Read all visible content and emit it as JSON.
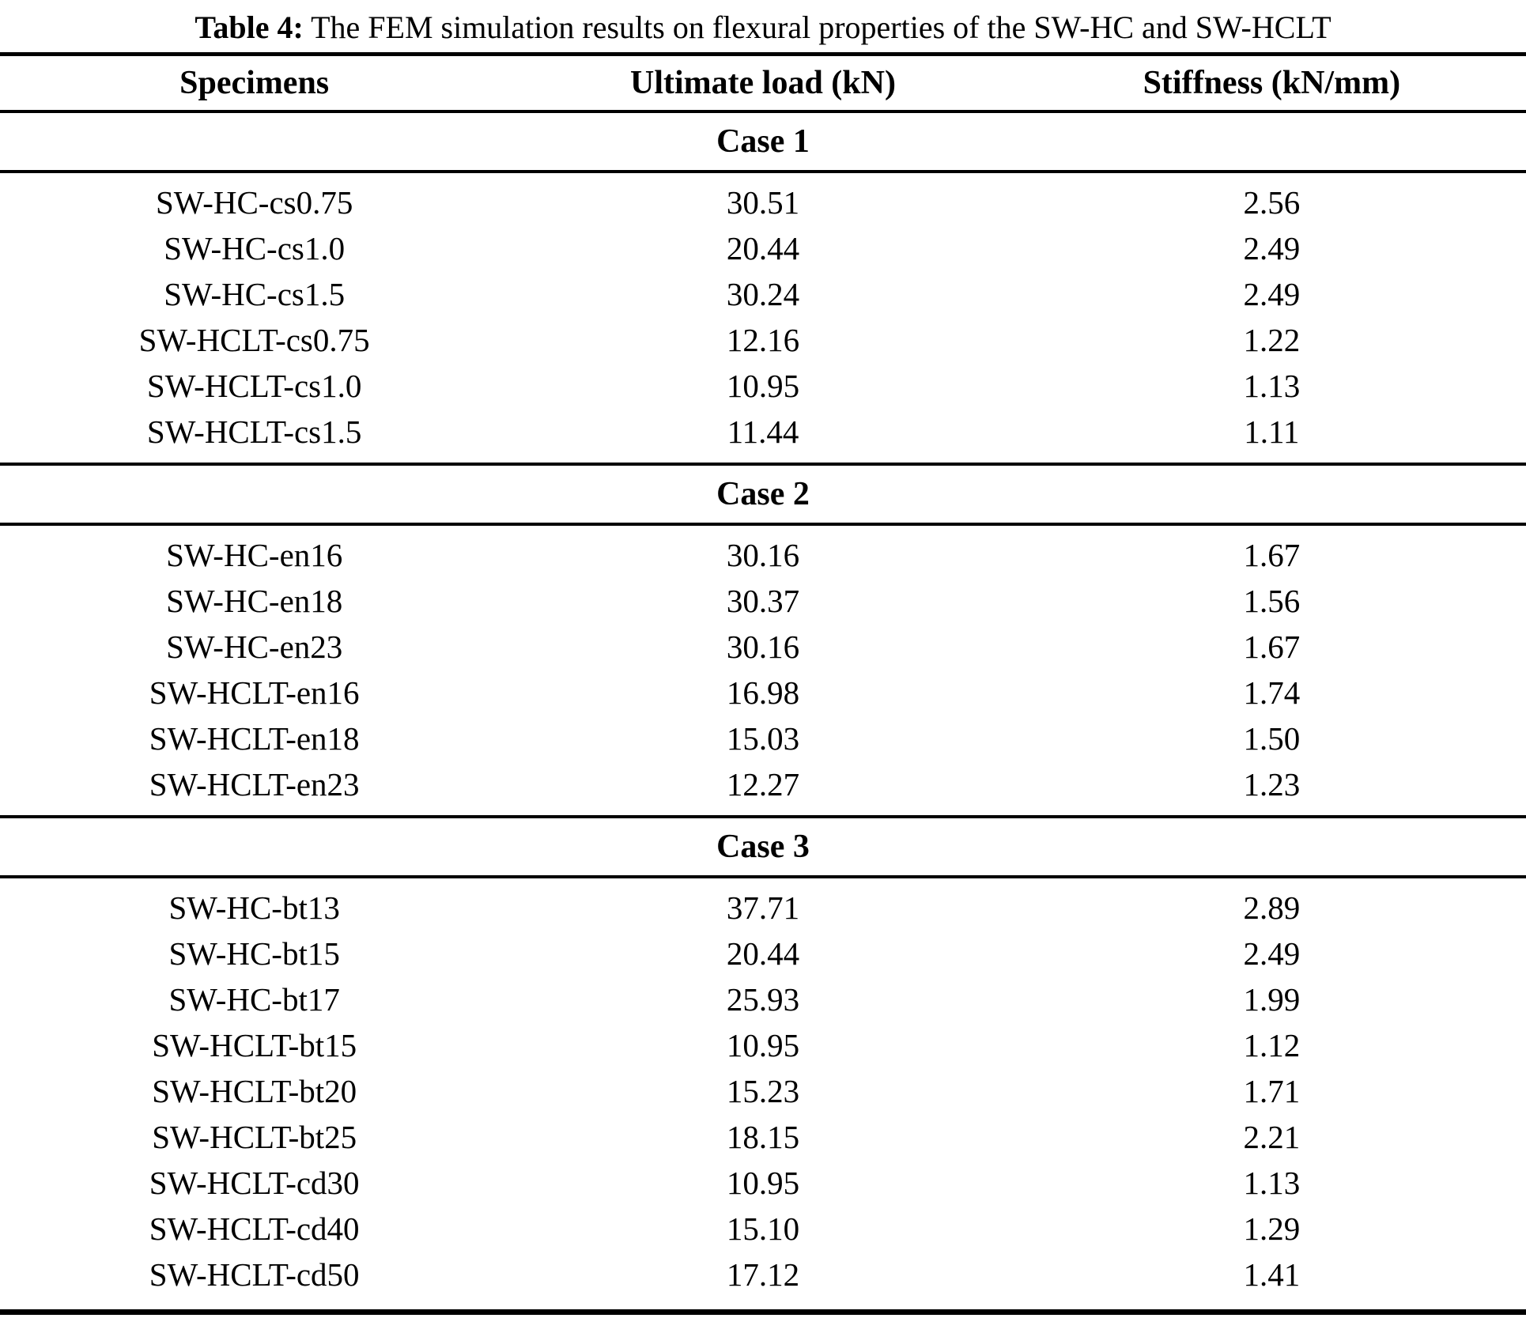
{
  "caption": {
    "prefix": "Table 4:",
    "text": " The FEM simulation results on flexural properties of the SW-HC and SW-HCLT"
  },
  "table": {
    "columns": [
      "Specimens",
      "Ultimate load (kN)",
      "Stiffness (kN/mm)"
    ],
    "sections": [
      {
        "label": "Case 1",
        "rows": [
          {
            "specimen": "SW-HC-cs0.75",
            "ultimate_load": "30.51",
            "stiffness": "2.56"
          },
          {
            "specimen": "SW-HC-cs1.0",
            "ultimate_load": "20.44",
            "stiffness": "2.49"
          },
          {
            "specimen": "SW-HC-cs1.5",
            "ultimate_load": "30.24",
            "stiffness": "2.49"
          },
          {
            "specimen": "SW-HCLT-cs0.75",
            "ultimate_load": "12.16",
            "stiffness": "1.22"
          },
          {
            "specimen": "SW-HCLT-cs1.0",
            "ultimate_load": "10.95",
            "stiffness": "1.13"
          },
          {
            "specimen": "SW-HCLT-cs1.5",
            "ultimate_load": "11.44",
            "stiffness": "1.11"
          }
        ]
      },
      {
        "label": "Case 2",
        "rows": [
          {
            "specimen": "SW-HC-en16",
            "ultimate_load": "30.16",
            "stiffness": "1.67"
          },
          {
            "specimen": "SW-HC-en18",
            "ultimate_load": "30.37",
            "stiffness": "1.56"
          },
          {
            "specimen": "SW-HC-en23",
            "ultimate_load": "30.16",
            "stiffness": "1.67"
          },
          {
            "specimen": "SW-HCLT-en16",
            "ultimate_load": "16.98",
            "stiffness": "1.74"
          },
          {
            "specimen": "SW-HCLT-en18",
            "ultimate_load": "15.03",
            "stiffness": "1.50"
          },
          {
            "specimen": "SW-HCLT-en23",
            "ultimate_load": "12.27",
            "stiffness": "1.23"
          }
        ]
      },
      {
        "label": "Case 3",
        "rows": [
          {
            "specimen": "SW-HC-bt13",
            "ultimate_load": "37.71",
            "stiffness": "2.89"
          },
          {
            "specimen": "SW-HC-bt15",
            "ultimate_load": "20.44",
            "stiffness": "2.49"
          },
          {
            "specimen": "SW-HC-bt17",
            "ultimate_load": "25.93",
            "stiffness": "1.99"
          },
          {
            "specimen": "SW-HCLT-bt15",
            "ultimate_load": "10.95",
            "stiffness": "1.12"
          },
          {
            "specimen": "SW-HCLT-bt20",
            "ultimate_load": "15.23",
            "stiffness": "1.71"
          },
          {
            "specimen": "SW-HCLT-bt25",
            "ultimate_load": "18.15",
            "stiffness": "2.21"
          },
          {
            "specimen": "SW-HCLT-cd30",
            "ultimate_load": "10.95",
            "stiffness": "1.13"
          },
          {
            "specimen": "SW-HCLT-cd40",
            "ultimate_load": "15.10",
            "stiffness": "1.29"
          },
          {
            "specimen": "SW-HCLT-cd50",
            "ultimate_load": "17.12",
            "stiffness": "1.41"
          }
        ]
      }
    ]
  },
  "colors": {
    "text": "#000000",
    "background": "#ffffff",
    "rule": "#000000"
  }
}
